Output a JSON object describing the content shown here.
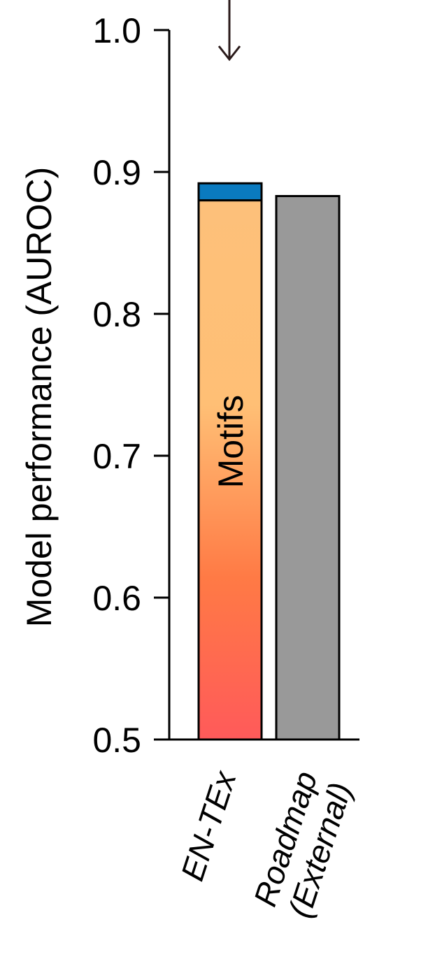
{
  "chart_data": {
    "type": "bar",
    "ylabel": "Model performance (AUROC)",
    "ylim": [
      0.5,
      1.0
    ],
    "yticks": [
      "0.5",
      "0.6",
      "0.7",
      "0.8",
      "0.9",
      "1.0"
    ],
    "categories": [
      {
        "id": "entex",
        "lines": [
          "EN-TEx"
        ]
      },
      {
        "id": "roadmap",
        "lines": [
          "Roadmap",
          "(External)"
        ]
      }
    ],
    "bars": [
      {
        "category": "EN-TEx",
        "segments": [
          {
            "label": "Motifs",
            "from": 0.5,
            "to": 0.88,
            "fill": "gradient",
            "gradient": [
              "#ff5a5a",
              "#ff7a45",
              "#ffbf75",
              "#fdc07a"
            ]
          },
          {
            "label": "",
            "from": 0.88,
            "to": 0.892,
            "fill": "#0a7abf"
          }
        ]
      },
      {
        "category": "Roadmap (External)",
        "segments": [
          {
            "label": "",
            "from": 0.5,
            "to": 0.883,
            "fill": "#999999"
          }
        ]
      }
    ],
    "annotation": {
      "type": "down-arrow",
      "target": "EN-TEx"
    },
    "grid": false,
    "legend": "none"
  }
}
